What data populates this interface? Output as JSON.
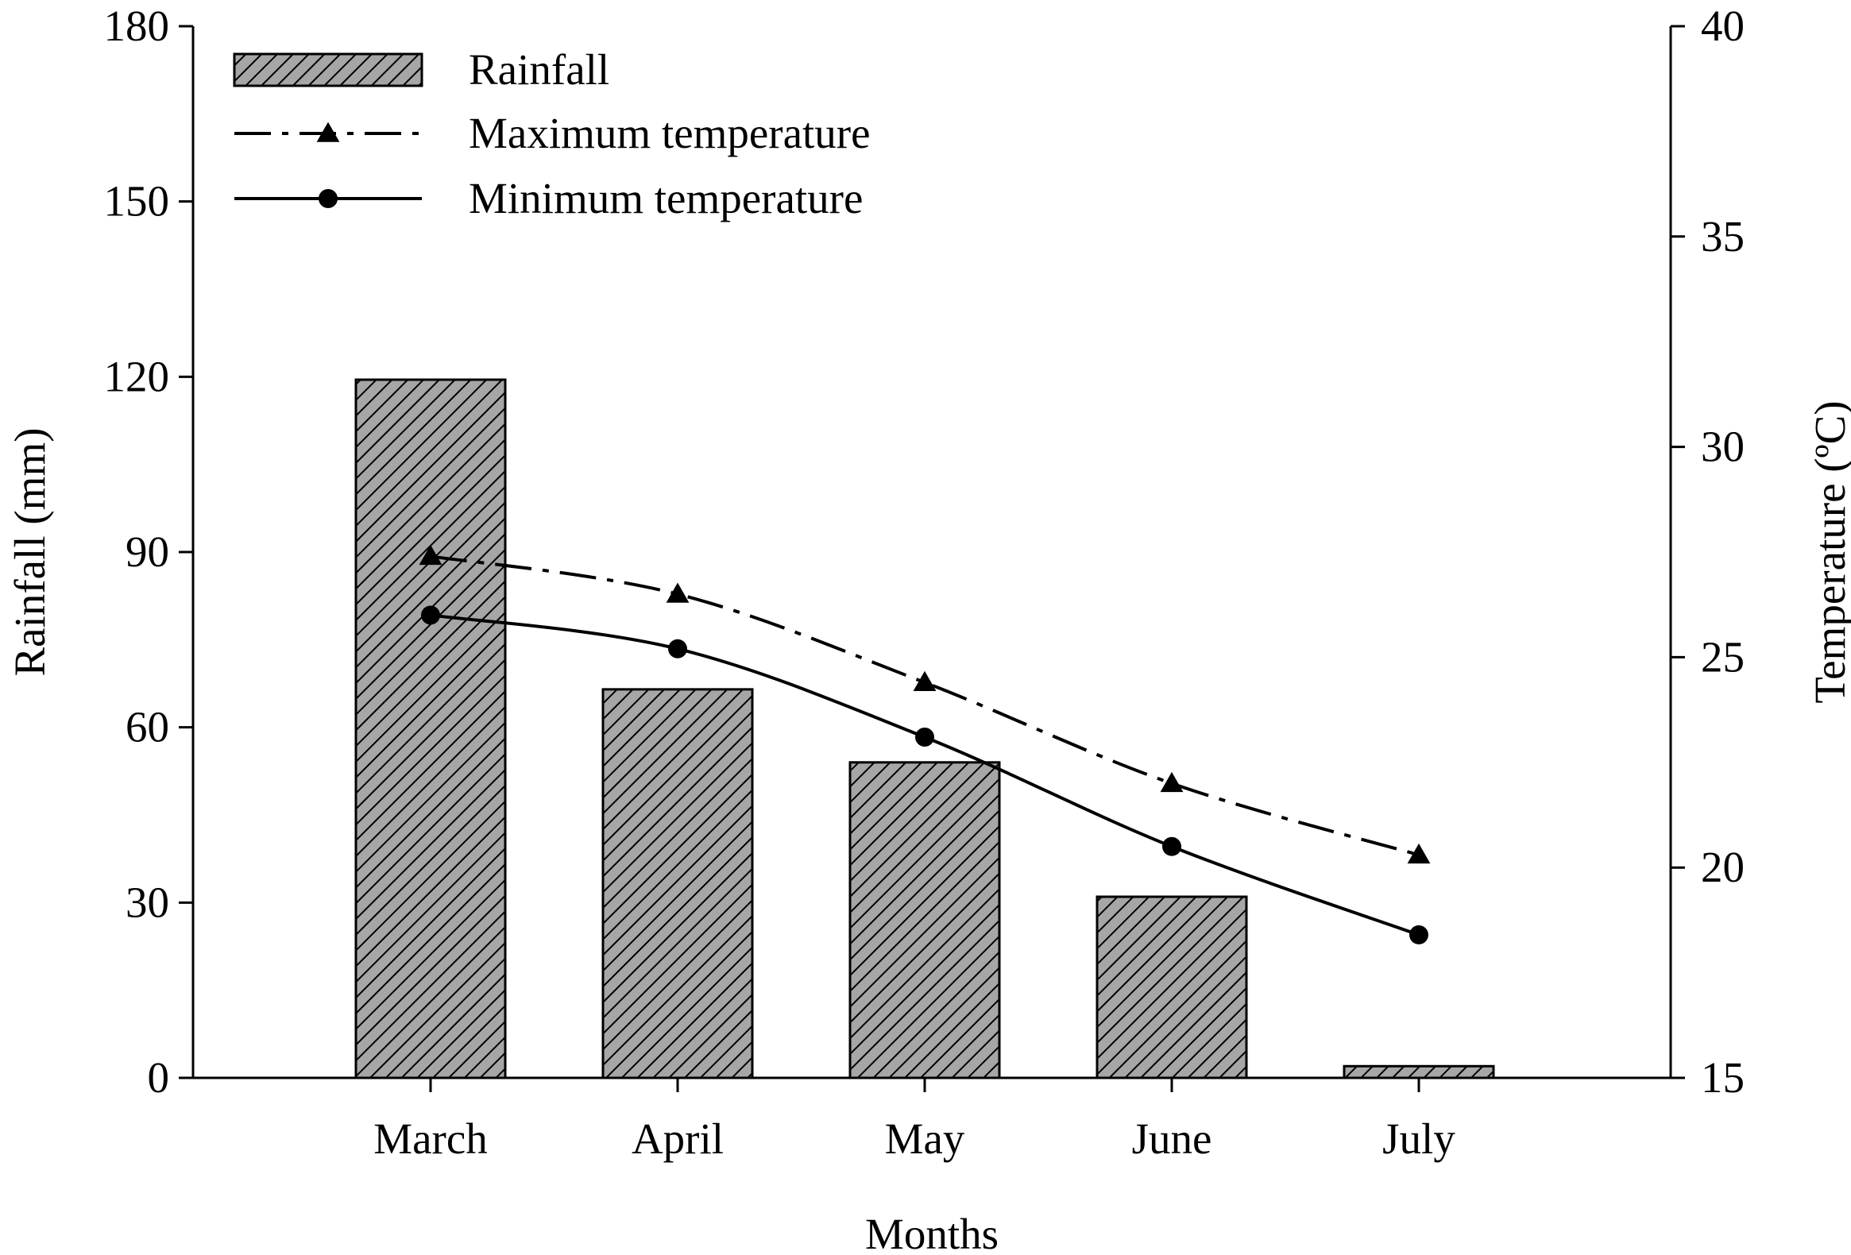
{
  "chart_data": {
    "type": "bar",
    "categories": [
      "March",
      "April",
      "May",
      "June",
      "July"
    ],
    "series": [
      {
        "name": "Rainfall",
        "kind": "bar",
        "axis": "left",
        "values": [
          119.5,
          66.5,
          54,
          31,
          2
        ]
      },
      {
        "name": "Maximum temperature",
        "kind": "line",
        "marker": "triangle",
        "dash": "dash-dot",
        "axis": "right",
        "values": [
          27.4,
          26.5,
          24.4,
          22,
          20.3
        ]
      },
      {
        "name": "Minimum temperature",
        "kind": "line",
        "marker": "circle",
        "dash": "solid",
        "axis": "right",
        "values": [
          26,
          25.2,
          23.1,
          20.5,
          18.4
        ]
      }
    ],
    "xlabel": "Months",
    "ylabel_left": "Rainfall (mm)",
    "ylabel_right": "Temperature (ºC)",
    "ylim_left": [
      0,
      180
    ],
    "yticks_left": [
      "0",
      "30",
      "60",
      "90",
      "120",
      "150",
      "180"
    ],
    "ylim_right": [
      15,
      40
    ],
    "yticks_right": [
      "15",
      "20",
      "25",
      "30",
      "35",
      "40"
    ],
    "legend": {
      "placement": "top-left",
      "entries": [
        "Rainfall",
        "Maximum temperature",
        "Minimum temperature"
      ]
    },
    "grid": false,
    "colors": {
      "bar_fill": "#a6a6a6",
      "hatch": "#000000",
      "line": "#000000",
      "axis": "#000000"
    }
  }
}
